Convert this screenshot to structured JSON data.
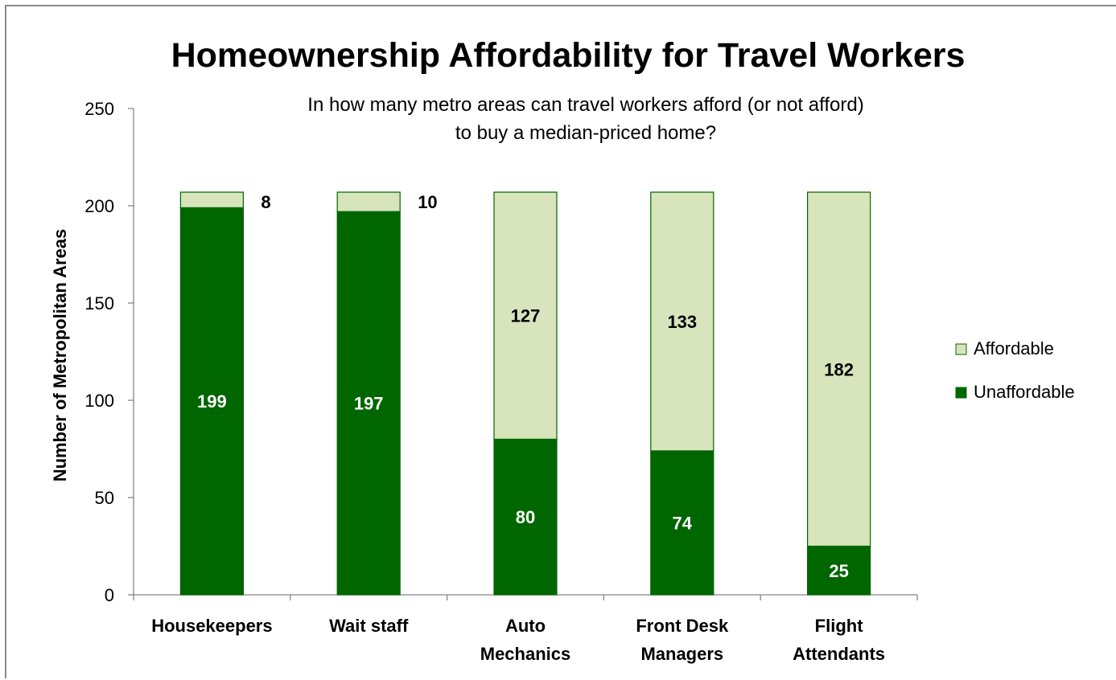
{
  "chart_data": {
    "type": "bar",
    "stacked": true,
    "title": "Homeownership Affordability for Travel Workers",
    "subtitle": [
      "In how many metro areas can travel workers afford (or not afford)",
      "to buy a median-priced home?"
    ],
    "ylabel": "Number of Metropolitan Areas",
    "xlabel": "",
    "ylim": [
      0,
      250
    ],
    "yticks": [
      0,
      50,
      100,
      150,
      200,
      250
    ],
    "categories": [
      [
        "Housekeepers"
      ],
      [
        "Wait staff"
      ],
      [
        "Auto",
        "Mechanics"
      ],
      [
        "Front Desk",
        "Managers"
      ],
      [
        "Flight",
        "Attendants"
      ]
    ],
    "series": [
      {
        "name": "Unaffordable",
        "color": "#006600",
        "label_color": "#ffffff",
        "values": [
          199,
          197,
          80,
          74,
          25
        ]
      },
      {
        "name": "Affordable",
        "color": "#d8e4bc",
        "label_color": "#000000",
        "values": [
          8,
          10,
          127,
          133,
          182
        ]
      }
    ],
    "legend": {
      "position": "right",
      "order": [
        "Affordable",
        "Unaffordable"
      ]
    },
    "grid": false
  }
}
